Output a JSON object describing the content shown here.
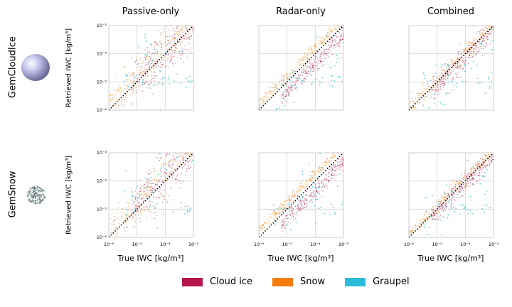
{
  "columns": [
    "Passive-only",
    "Radar-only",
    "Combined"
  ],
  "rows": [
    "GemCloudIce",
    "GemSnow"
  ],
  "ylabel": "Retrieved IWC [kg/m³]",
  "xlabel": "True IWC [kg/m³]",
  "colors": {
    "cloud_ice": "#b5174d",
    "snow": "#f57c0a",
    "graupel": "#2bbcd8"
  },
  "legend": [
    {
      "label": "Cloud ice",
      "color": "#b5174d"
    },
    {
      "label": "Snow",
      "color": "#f57c0a"
    },
    {
      "label": "Graupel",
      "color": "#2bbcd8"
    }
  ],
  "chart_data": {
    "type": "scatter",
    "log_scale": true,
    "xlim": [
      1e-06,
      0.001
    ],
    "ylim": [
      1e-06,
      0.001
    ],
    "grid": true,
    "reference_line": "1:1 dotted",
    "x_ticks": [
      "10⁻⁶",
      "10⁻⁵",
      "10⁻⁴",
      "10⁻³"
    ],
    "y_ticks": [
      "10⁻⁶",
      "10⁻⁵",
      "10⁻⁴",
      "10⁻³"
    ],
    "series": [
      {
        "name": "Cloud ice",
        "color": "#b5174d"
      },
      {
        "name": "Snow",
        "color": "#f57c0a"
      },
      {
        "name": "Graupel",
        "color": "#2bbcd8"
      }
    ],
    "panels": [
      {
        "row": "GemCloudIce",
        "column": "Passive-only",
        "spread": {
          "cloud_ice": 0.45,
          "snow": 0.35,
          "graupel": 0.7
        },
        "bias": {
          "cloud_ice": 0.1,
          "snow": 0.15,
          "graupel": 0.3
        }
      },
      {
        "row": "GemCloudIce",
        "column": "Radar-only",
        "spread": {
          "cloud_ice": 0.15,
          "snow": 0.12,
          "graupel": 0.5
        },
        "bias": {
          "cloud_ice": -0.35,
          "snow": 0.2,
          "graupel": -0.6
        }
      },
      {
        "row": "GemCloudIce",
        "column": "Combined",
        "spread": {
          "cloud_ice": 0.18,
          "snow": 0.15,
          "graupel": 0.45
        },
        "bias": {
          "cloud_ice": -0.15,
          "snow": 0.1,
          "graupel": -0.3
        }
      },
      {
        "row": "GemSnow",
        "column": "Passive-only",
        "spread": {
          "cloud_ice": 0.5,
          "snow": 0.3,
          "graupel": 0.5
        },
        "bias": {
          "cloud_ice": 0.1,
          "snow": 0.2,
          "graupel": 0.5
        }
      },
      {
        "row": "GemSnow",
        "column": "Radar-only",
        "spread": {
          "cloud_ice": 0.15,
          "snow": 0.1,
          "graupel": 0.5
        },
        "bias": {
          "cloud_ice": -0.35,
          "snow": 0.25,
          "graupel": -0.3
        }
      },
      {
        "row": "GemSnow",
        "column": "Combined",
        "spread": {
          "cloud_ice": 0.18,
          "snow": 0.12,
          "graupel": 0.45
        },
        "bias": {
          "cloud_ice": -0.1,
          "snow": 0.1,
          "graupel": -0.4
        }
      }
    ]
  }
}
